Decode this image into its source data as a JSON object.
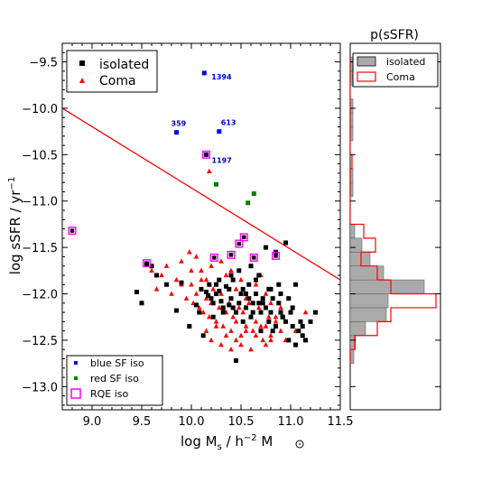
{
  "chart_data": [
    {
      "type": "scatter",
      "xlabel": "log M",
      "xlabel_sub": "s",
      "xlabel_unit": " / h",
      "xlabel_unit_sup": "−2",
      "xlabel_msun": " M",
      "ylabel": "log sSFR / yr",
      "ylabel_sup": "−1",
      "xlim": [
        8.7,
        11.5
      ],
      "ylim": [
        -13.25,
        -9.3
      ],
      "xticks": [
        "9.0",
        "9.5",
        "10.0",
        "10.5",
        "11.0",
        "11.5"
      ],
      "yticks": [
        "−9.5",
        "−10.0",
        "−10.5",
        "−11.0",
        "−11.5",
        "−12.0",
        "−12.5",
        "−13.0"
      ],
      "xtick_values": [
        9.0,
        9.5,
        10.0,
        10.5,
        11.0,
        11.5
      ],
      "ytick_values": [
        -9.5,
        -10.0,
        -10.5,
        -11.0,
        -11.5,
        -12.0,
        -12.5,
        -13.0
      ],
      "grid": false,
      "legend_upper": {
        "placement": "top-left",
        "entries": [
          "isolated",
          "Coma"
        ]
      },
      "legend_lower": {
        "placement": "bottom-left",
        "entries": [
          "blue SF iso",
          "red SF iso",
          "RQE iso"
        ]
      },
      "colors": {
        "isolated": "#000000",
        "coma": "#ff0000",
        "blue_sf": "#0000ff",
        "red_sf": "#008000",
        "rqe": "#ff00ff",
        "divider": "#ff0000"
      },
      "divider_line": {
        "x": [
          8.7,
          11.5
        ],
        "y": [
          -10.0,
          -11.85
        ]
      },
      "series": [
        {
          "name": "isolated",
          "x": [
            9.55,
            9.6,
            9.65,
            9.75,
            9.85,
            9.9,
            9.98,
            10.05,
            10.08,
            10.1,
            10.15,
            10.17,
            10.2,
            10.22,
            10.25,
            10.28,
            10.3,
            10.32,
            10.35,
            10.38,
            10.4,
            10.42,
            10.45,
            10.48,
            10.5,
            10.52,
            10.55,
            10.58,
            10.6,
            10.62,
            10.65,
            10.68,
            10.7,
            10.72,
            10.75,
            10.78,
            10.8,
            10.82,
            10.85,
            10.88,
            10.9,
            10.92,
            10.95,
            10.98,
            11.0,
            11.02,
            11.05,
            11.08,
            11.1,
            11.12,
            11.15,
            11.2,
            11.25,
            10.45,
            10.6,
            10.75,
            10.85,
            10.95,
            11.05,
            9.5,
            9.45,
            10.18,
            10.28,
            10.38,
            10.48,
            10.58,
            10.68,
            10.78,
            10.88,
            10.98,
            10.22,
            10.32,
            10.42,
            10.52,
            10.62,
            10.72,
            10.82,
            10.92,
            11.02,
            11.12,
            10.7,
            10.9,
            10.12,
            10.25,
            10.4,
            10.55,
            10.65,
            10.8
          ],
          "y": [
            -11.68,
            -11.7,
            -11.8,
            -11.9,
            -12.18,
            -11.88,
            -12.35,
            -12.12,
            -12.2,
            -11.95,
            -11.98,
            -12.02,
            -12.05,
            -12.1,
            -12.0,
            -11.97,
            -12.08,
            -12.15,
            -11.92,
            -12.12,
            -12.05,
            -11.85,
            -12.2,
            -12.1,
            -12.0,
            -11.95,
            -12.15,
            -12.05,
            -12.25,
            -12.1,
            -12.0,
            -12.1,
            -12.2,
            -12.05,
            -12.15,
            -12.3,
            -12.2,
            -12.4,
            -12.35,
            -12.1,
            -12.0,
            -12.25,
            -12.3,
            -12.5,
            -12.2,
            -12.35,
            -12.55,
            -12.4,
            -12.3,
            -12.45,
            -12.5,
            -12.3,
            -12.2,
            -12.72,
            -11.7,
            -11.5,
            -11.55,
            -11.45,
            -11.9,
            -12.1,
            -11.98,
            -11.9,
            -11.85,
            -11.95,
            -11.75,
            -11.9,
            -11.8,
            -11.95,
            -11.9,
            -12.05,
            -12.25,
            -12.2,
            -12.15,
            -12.3,
            -12.2,
            -12.1,
            -12.05,
            -12.25,
            -12.15,
            -12.35,
            -12.4,
            -12.2,
            -12.45,
            -11.9,
            -11.8,
            -12.0,
            -11.85,
            -11.95
          ]
        },
        {
          "name": "Coma",
          "x": [
            9.6,
            9.65,
            9.7,
            9.75,
            9.8,
            9.85,
            9.9,
            9.95,
            10.0,
            10.02,
            10.05,
            10.08,
            10.1,
            10.12,
            10.15,
            10.18,
            10.2,
            10.22,
            10.25,
            10.28,
            10.3,
            10.32,
            10.35,
            10.38,
            10.4,
            10.42,
            10.45,
            10.48,
            10.5,
            10.52,
            10.55,
            10.58,
            10.6,
            10.62,
            10.65,
            10.68,
            10.7,
            10.72,
            10.75,
            10.78,
            10.8,
            10.85,
            10.9,
            10.95,
            11.0,
            10.05,
            10.1,
            10.15,
            10.2,
            10.25,
            10.3,
            10.35,
            10.4,
            10.45,
            10.5,
            10.55,
            10.6,
            10.65,
            10.7,
            10.75,
            10.8,
            10.15,
            10.2,
            10.25,
            10.3,
            10.35,
            10.4,
            10.45,
            10.5,
            10.55,
            10.6,
            10.65,
            10.7,
            10.75,
            10.8,
            10.85,
            10.9,
            10.95,
            11.05,
            11.15,
            10.18,
            9.98,
            9.9,
            10.0
          ],
          "y": [
            -11.75,
            -11.95,
            -11.8,
            -11.7,
            -12.0,
            -11.85,
            -11.9,
            -12.05,
            -11.9,
            -12.1,
            -12.0,
            -12.15,
            -11.85,
            -12.2,
            -12.05,
            -12.25,
            -12.1,
            -11.95,
            -12.3,
            -12.15,
            -12.0,
            -12.35,
            -12.2,
            -12.1,
            -12.4,
            -12.25,
            -12.3,
            -12.15,
            -12.45,
            -12.2,
            -12.35,
            -12.1,
            -12.25,
            -12.4,
            -12.3,
            -12.15,
            -12.2,
            -12.5,
            -12.35,
            -12.25,
            -12.45,
            -12.3,
            -12.4,
            -12.5,
            -12.2,
            -11.6,
            -11.75,
            -11.85,
            -11.7,
            -11.9,
            -11.65,
            -11.8,
            -11.75,
            -11.95,
            -11.85,
            -12.05,
            -11.7,
            -11.9,
            -11.8,
            -12.0,
            -12.1,
            -12.4,
            -12.5,
            -12.35,
            -12.55,
            -12.45,
            -12.6,
            -12.5,
            -12.55,
            -12.4,
            -12.6,
            -12.45,
            -12.35,
            -12.55,
            -12.5,
            -12.25,
            -12.15,
            -12.3,
            -12.4,
            -12.2,
            -10.68,
            -11.55,
            -11.65,
            -11.75
          ]
        },
        {
          "name": "blue SF iso",
          "x": [
            10.13,
            9.85,
            10.28,
            10.15
          ],
          "y": [
            -9.62,
            -10.26,
            -10.25,
            -10.5
          ],
          "labels": [
            "1394",
            "359",
            "613",
            "1197"
          ]
        },
        {
          "name": "red SF iso",
          "x": [
            10.25,
            10.57,
            10.63
          ],
          "y": [
            -10.82,
            -11.02,
            -10.92
          ]
        },
        {
          "name": "RQE iso",
          "x": [
            8.8,
            9.55,
            10.15,
            10.23,
            10.4,
            10.48,
            10.53,
            10.63,
            10.85
          ],
          "y": [
            -11.32,
            -11.67,
            -10.5,
            -11.61,
            -11.58,
            -11.46,
            -11.39,
            -11.61,
            -11.59
          ]
        }
      ]
    },
    {
      "type": "histogram",
      "title": "p(sSFR)",
      "orientation": "horizontal",
      "ylim": [
        -13.25,
        -9.3
      ],
      "legend": {
        "placement": "top",
        "entries": [
          "isolated",
          "Coma"
        ]
      },
      "bin_edges": [
        -12.75,
        -12.6,
        -12.45,
        -12.3,
        -12.15,
        -12.0,
        -11.85,
        -11.7,
        -11.55,
        -11.4,
        -11.25,
        -11.1,
        -10.95,
        -10.8,
        -10.65,
        -10.5,
        -10.35,
        -10.2,
        -10.05,
        -9.9,
        -9.75,
        -9.6,
        -9.45
      ],
      "series": [
        {
          "name": "isolated",
          "values": [
            0.04,
            0.06,
            0.17,
            0.4,
            0.42,
            0.82,
            0.37,
            0.22,
            0.13,
            0.05,
            0.0,
            0.0,
            0.03,
            0.03,
            0.0,
            0.0,
            0.03,
            0.03,
            0.03,
            0.0,
            0.03,
            0.03
          ],
          "color": "#aaaaaa"
        },
        {
          "name": "Coma",
          "values": [
            0.0,
            0.05,
            0.3,
            0.45,
            0.95,
            0.45,
            0.3,
            0.12,
            0.28,
            0.15,
            0.0,
            0.0,
            0.0,
            0.0,
            0.02,
            0.0,
            0.0,
            0.0,
            0.0,
            0.0,
            0.0,
            0.0
          ],
          "color": "#ff0000"
        }
      ]
    }
  ]
}
